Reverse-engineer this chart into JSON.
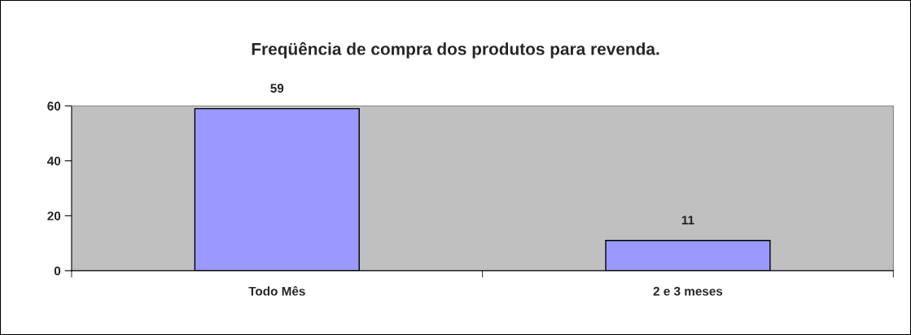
{
  "chart_data": {
    "type": "bar",
    "title": "Freqüência de compra dos produtos para revenda.",
    "categories": [
      "Todo Mês",
      "2 e 3 meses"
    ],
    "values": [
      59,
      11
    ],
    "color": "#9999ff",
    "ylim": [
      0,
      60
    ],
    "yticks": [
      0,
      20,
      40,
      60
    ],
    "grid": false,
    "data_labels": true
  }
}
